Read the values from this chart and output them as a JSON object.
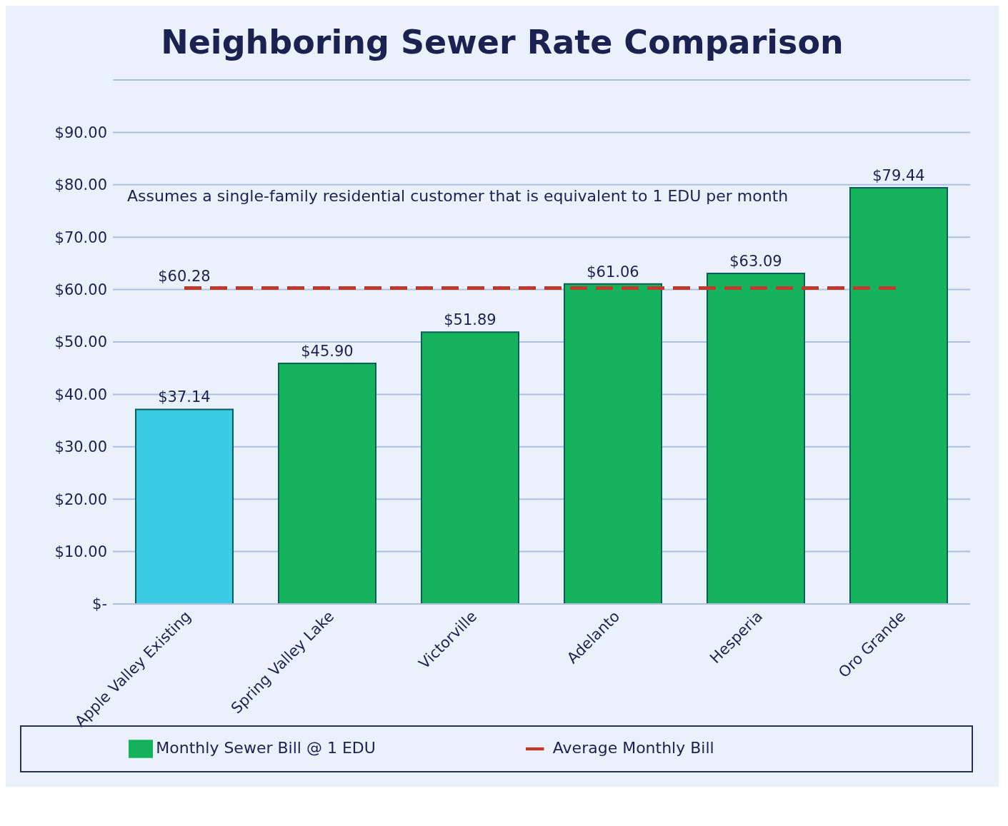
{
  "chart_data": {
    "type": "bar",
    "title": "Neighboring Sewer Rate Comparison",
    "annotations": [
      "Assumes a single-family residential customer that is equivalent to 1 EDU per month"
    ],
    "categories": [
      "Apple Valley Existing",
      "Spring Valley Lake",
      "Victorville",
      "Adelanto",
      "Hesperia",
      "Oro Grande"
    ],
    "series": [
      {
        "name": "Monthly Sewer Bill @ 1 EDU",
        "color": "#14b25a",
        "colors": [
          "#3ccbe6",
          "#14b25a",
          "#14b25a",
          "#14b25a",
          "#14b25a",
          "#14b25a"
        ],
        "values": [
          37.14,
          45.9,
          51.89,
          61.06,
          63.09,
          79.44
        ],
        "value_labels": [
          "$37.14",
          "$45.90",
          "$51.89",
          "$61.06",
          "$63.09",
          "$79.44"
        ]
      },
      {
        "name": "Average Monthly Bill",
        "type": "line",
        "color": "#c0392b",
        "values": [
          60.28,
          60.28,
          60.28,
          60.28,
          60.28,
          60.28
        ],
        "value_labels": [
          "$60.28",
          null,
          null,
          null,
          null,
          null
        ],
        "line_style": "dashed",
        "marker": "none"
      }
    ],
    "ylim": [
      0,
      100
    ],
    "yticks": [
      {
        "value": 0,
        "label": "$-"
      },
      {
        "value": 10,
        "label": "$10.00"
      },
      {
        "value": 20,
        "label": "$20.00"
      },
      {
        "value": 30,
        "label": "$30.00"
      },
      {
        "value": 40,
        "label": "$40.00"
      },
      {
        "value": 50,
        "label": "$50.00"
      },
      {
        "value": 60,
        "label": "$60.00"
      },
      {
        "value": 70,
        "label": "$70.00"
      },
      {
        "value": 80,
        "label": "$80.00"
      },
      {
        "value": 90,
        "label": "$90.00"
      },
      {
        "value": 100,
        "label": null
      }
    ],
    "grid": "y",
    "legend": "bottom"
  }
}
